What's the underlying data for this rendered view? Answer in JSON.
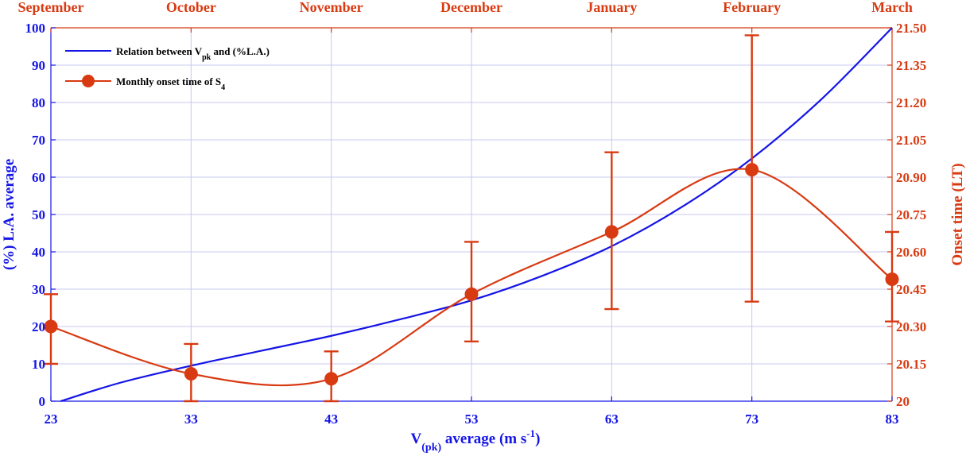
{
  "chart_data": {
    "type": "line",
    "top_axis": {
      "labels": [
        "September",
        "October",
        "November",
        "December",
        "January",
        "February",
        "March"
      ]
    },
    "x_axis": {
      "label_main": "V",
      "label_sub": "(pk)",
      "label_rest": " average (m s",
      "label_sup": "-1",
      "label_close": ")",
      "range": [
        23,
        83
      ],
      "ticks": [
        "23",
        "33",
        "43",
        "53",
        "63",
        "73",
        "83"
      ]
    },
    "y_left": {
      "label": "(%) L.A. average",
      "range": [
        0,
        100
      ],
      "ticks": [
        "0",
        "10",
        "20",
        "30",
        "40",
        "50",
        "60",
        "70",
        "80",
        "90",
        "100"
      ]
    },
    "y_right": {
      "label": "Onset time (LT)",
      "range": [
        20,
        21.5
      ],
      "ticks": [
        "20",
        "20.15",
        "20.30",
        "20.45",
        "20.60",
        "20.75",
        "20.90",
        "21.05",
        "21.20",
        "21.35",
        "21.50"
      ]
    },
    "grid": true,
    "legend": {
      "position": "top-left",
      "entries": [
        {
          "text_main": "Relation between V",
          "text_sub": "pk",
          "text_rest": " and (%L.A.)"
        },
        {
          "text_main": "Monthly onset time of S",
          "text_sub": "4",
          "text_rest": ""
        }
      ]
    },
    "series": [
      {
        "name": "Relation between Vpk and (%L.A.)",
        "axis": "left",
        "color": "#1515e6",
        "x": [
          23.7,
          28,
          33,
          38,
          43,
          48,
          53,
          58,
          63,
          68,
          73,
          78,
          83
        ],
        "y": [
          0,
          5,
          9.5,
          13.5,
          17.5,
          22,
          27,
          33.5,
          41.5,
          52,
          65,
          81,
          100
        ]
      },
      {
        "name": "Monthly onset time of S4",
        "axis": "right",
        "color": "#d83a12",
        "x": [
          23,
          33,
          43,
          53,
          63,
          73,
          83
        ],
        "y": [
          20.3,
          20.11,
          20.09,
          20.43,
          20.68,
          20.93,
          20.49
        ],
        "err_low": [
          20.15,
          20.0,
          20.0,
          20.24,
          20.37,
          20.4,
          20.32
        ],
        "err_high": [
          20.43,
          20.23,
          20.2,
          20.64,
          21.0,
          21.47,
          20.68
        ]
      }
    ],
    "colors": {
      "blue": "#1515e6",
      "red": "#d83a12",
      "grid": "#c8c8f0"
    }
  }
}
